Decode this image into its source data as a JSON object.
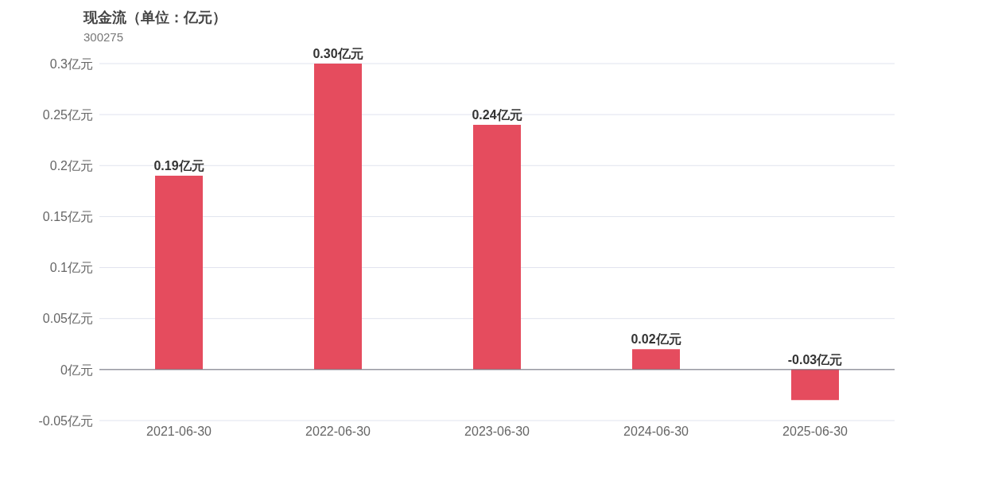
{
  "chart_data": {
    "type": "bar",
    "title": "现金流（单位：亿元）",
    "subtitle": "300275",
    "categories": [
      "2021-06-30",
      "2022-06-30",
      "2023-06-30",
      "2024-06-30",
      "2025-06-30"
    ],
    "values": [
      0.19,
      0.3,
      0.24,
      0.02,
      -0.03
    ],
    "color": "#e54c5e",
    "value_labels": [
      "0.19亿元",
      "0.30亿元",
      "0.24亿元",
      "0.02亿元",
      "-0.03亿元"
    ],
    "ylim": [
      -0.05,
      0.3
    ],
    "yticks": [
      {
        "value": -0.05,
        "label": "-0.05亿元"
      },
      {
        "value": 0,
        "label": "0亿元"
      },
      {
        "value": 0.05,
        "label": "0.05亿元"
      },
      {
        "value": 0.1,
        "label": "0.1亿元"
      },
      {
        "value": 0.15,
        "label": "0.15亿元"
      },
      {
        "value": 0.2,
        "label": "0.2亿元"
      },
      {
        "value": 0.25,
        "label": "0.25亿元"
      },
      {
        "value": 0.3,
        "label": "0.3亿元"
      }
    ],
    "grid": "y",
    "legend": false
  }
}
